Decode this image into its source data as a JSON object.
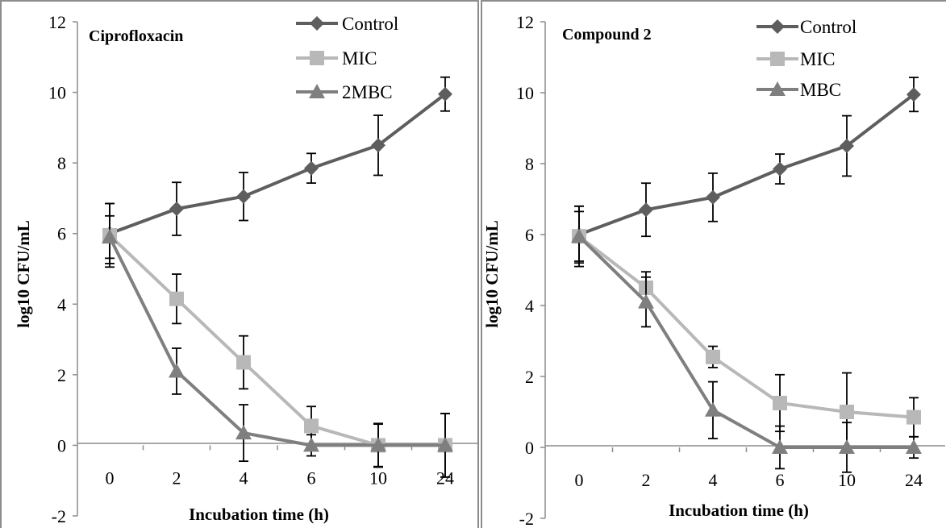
{
  "chart_data": [
    {
      "type": "line",
      "title": "Ciprofloxacin",
      "xlabel": "Incubation time (h)",
      "ylabel": "log10 CFU/mL",
      "categories": [
        "0",
        "2",
        "4",
        "6",
        "10",
        "24"
      ],
      "ylim": [
        -2,
        12
      ],
      "yticks": [
        "-2",
        "0",
        "2",
        "4",
        "6",
        "8",
        "10",
        "12"
      ],
      "legend_position": "top-right",
      "grid": false,
      "series": [
        {
          "name": "Control",
          "marker": "diamond",
          "color": "#5e5e5e",
          "values": [
            6.0,
            6.7,
            7.05,
            7.85,
            8.5,
            9.95
          ],
          "errors": [
            0.85,
            0.75,
            0.68,
            0.42,
            0.85,
            0.48
          ]
        },
        {
          "name": "MIC",
          "marker": "square",
          "color": "#b8b8b8",
          "values": [
            5.95,
            4.15,
            2.35,
            0.55,
            0.0,
            0.0
          ],
          "errors": [
            0.9,
            0.7,
            0.75,
            0.55,
            0.62,
            0.9
          ]
        },
        {
          "name": "2MBC",
          "marker": "triangle",
          "color": "#7f7f7f",
          "values": [
            5.9,
            2.1,
            0.35,
            0.0,
            0.0,
            0.0
          ],
          "errors": [
            0.6,
            0.65,
            0.8,
            0.3,
            0.6,
            0.9
          ]
        }
      ]
    },
    {
      "type": "line",
      "title": "Compound 2",
      "xlabel": "Incubation time (h)",
      "ylabel": "log10 CFU/mL",
      "categories": [
        "0",
        "2",
        "4",
        "6",
        "10",
        "24"
      ],
      "ylim": [
        -2,
        12
      ],
      "yticks": [
        "-2",
        "0",
        "2",
        "4",
        "6",
        "8",
        "10",
        "12"
      ],
      "legend_position": "top-right",
      "grid": false,
      "series": [
        {
          "name": "Control",
          "marker": "diamond",
          "color": "#5e5e5e",
          "values": [
            6.0,
            6.7,
            7.05,
            7.85,
            8.5,
            9.95
          ],
          "errors": [
            0.8,
            0.75,
            0.68,
            0.42,
            0.85,
            0.48
          ]
        },
        {
          "name": "MIC",
          "marker": "square",
          "color": "#b8b8b8",
          "values": [
            5.95,
            4.5,
            2.55,
            1.25,
            1.0,
            0.85
          ],
          "errors": [
            0.85,
            0.45,
            0.3,
            0.8,
            1.1,
            0.55
          ]
        },
        {
          "name": "MBC",
          "marker": "triangle",
          "color": "#7f7f7f",
          "values": [
            5.95,
            4.1,
            1.05,
            0.0,
            0.0,
            0.0
          ],
          "errors": [
            0.7,
            0.7,
            0.8,
            0.6,
            0.7,
            0.3
          ]
        }
      ]
    }
  ]
}
